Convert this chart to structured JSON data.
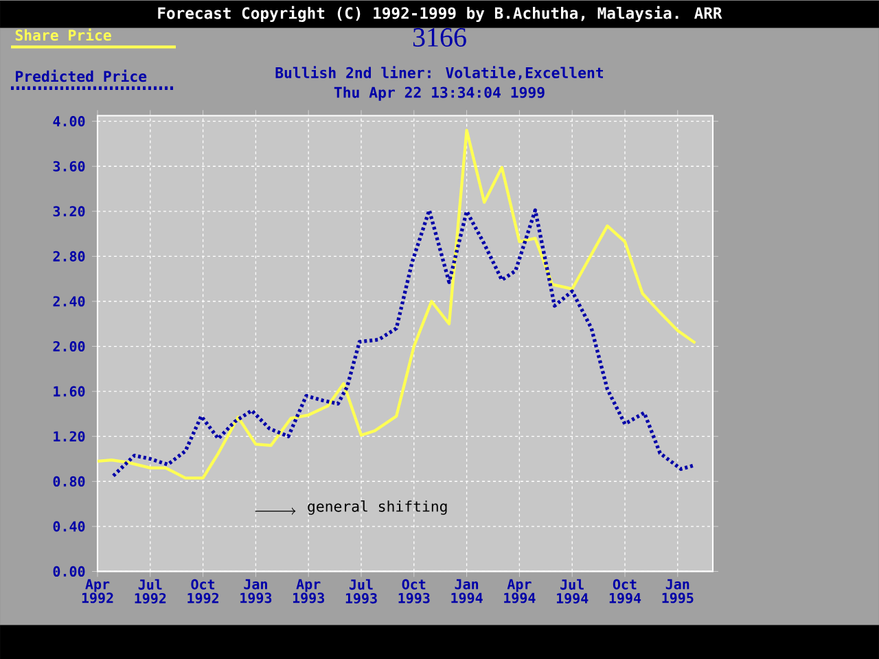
{
  "chart_data": {
    "type": "line",
    "title": "3166",
    "subtitle": "Bullish  2nd liner: Volatile,Excellent",
    "annotations": [
      "Forecast Copyright (C) 1992-1999 by B.Achutha, Malaysia. ARR",
      "Thu Apr 22 13:34:04 1999",
      "general shifting"
    ],
    "xlim": [
      "1992-04",
      "1995-03"
    ],
    "xticks": [
      {
        "value": "1992-04",
        "label": "Apr 1992"
      },
      {
        "value": "1992-07",
        "label": "Jul 1992"
      },
      {
        "value": "1992-10",
        "label": "Oct 1992"
      },
      {
        "value": "1993-01",
        "label": "Jan 1993"
      },
      {
        "value": "1993-04",
        "label": "Apr 1993"
      },
      {
        "value": "1993-07",
        "label": "Jul 1993"
      },
      {
        "value": "1993-10",
        "label": "Oct 1993"
      },
      {
        "value": "1994-01",
        "label": "Jan 1994"
      },
      {
        "value": "1994-04",
        "label": "Apr 1994"
      },
      {
        "value": "1994-07",
        "label": "Jul 1994"
      },
      {
        "value": "1994-10",
        "label": "Oct 1994"
      },
      {
        "value": "1995-01",
        "label": "Jan 1995"
      }
    ],
    "ylim": [
      0,
      4.05
    ],
    "yticks": [
      {
        "value": 0,
        "label": "0.00"
      },
      {
        "value": 0.4,
        "label": "0.40"
      },
      {
        "value": 0.8,
        "label": "0.80"
      },
      {
        "value": 1.2,
        "label": "1.20"
      },
      {
        "value": 1.6,
        "label": "1.60"
      },
      {
        "value": 2.0,
        "label": "2.00"
      },
      {
        "value": 2.4,
        "label": "2.40"
      },
      {
        "value": 2.8,
        "label": "2.80"
      },
      {
        "value": 3.2,
        "label": "3.20"
      },
      {
        "value": 3.6,
        "label": "3.60"
      },
      {
        "value": 4.0,
        "label": "4.00"
      }
    ],
    "grid": true,
    "legend": "top left",
    "marker": "none",
    "series": [
      {
        "name": "Share Price",
        "color": "#ffff54",
        "line_style": "solid",
        "x": [
          "1992-04-01",
          "1992-04-25",
          "1992-05-22",
          "1992-07-01",
          "1992-07-28",
          "1992-09-01",
          "1992-10-01",
          "1992-10-28",
          "1992-12-01",
          "1993-01-01",
          "1993-01-28",
          "1993-03-01",
          "1993-04-01",
          "1993-05-04",
          "1993-06-01",
          "1993-07-01",
          "1993-07-25",
          "1993-09-01",
          "1993-10-01",
          "1993-11-01",
          "1993-12-01",
          "1994-01-01",
          "1994-02-01",
          "1994-03-01",
          "1994-04-01",
          "1994-04-28",
          "1994-05-28",
          "1994-07-01",
          "1994-08-01",
          "1994-09-01",
          "1994-10-01",
          "1994-11-01",
          "1994-12-01",
          "1995-01-01",
          "1995-02-01"
        ],
        "values": [
          0.98,
          0.99,
          0.97,
          0.92,
          0.92,
          0.83,
          0.83,
          1.05,
          1.37,
          1.13,
          1.12,
          1.36,
          1.39,
          1.47,
          1.67,
          1.21,
          1.25,
          1.38,
          2.0,
          2.4,
          2.2,
          3.92,
          3.28,
          3.59,
          2.93,
          2.96,
          2.55,
          2.51,
          2.79,
          3.07,
          2.93,
          2.47,
          2.3,
          2.14,
          2.03
        ]
      },
      {
        "name": "Predicted Price",
        "color": "#0000a8",
        "line_style": "dotted",
        "x": [
          "1992-04-28",
          "1992-06-04",
          "1992-07-01",
          "1992-08-01",
          "1992-09-01",
          "1992-09-28",
          "1992-10-28",
          "1992-11-25",
          "1992-12-25",
          "1993-01-25",
          "1993-02-25",
          "1993-03-28",
          "1993-04-25",
          "1993-05-22",
          "1993-06-07",
          "1993-06-28",
          "1993-08-01",
          "1993-09-01",
          "1993-09-28",
          "1993-10-28",
          "1993-12-01",
          "1994-01-01",
          "1994-02-01",
          "1994-03-01",
          "1994-03-25",
          "1994-04-28",
          "1994-06-01",
          "1994-07-01",
          "1994-08-04",
          "1994-09-01",
          "1994-10-01",
          "1994-11-04",
          "1994-12-01",
          "1995-01-07",
          "1995-01-28"
        ],
        "values": [
          0.85,
          1.03,
          1.0,
          0.95,
          1.07,
          1.38,
          1.18,
          1.33,
          1.43,
          1.27,
          1.2,
          1.56,
          1.52,
          1.49,
          1.64,
          2.04,
          2.06,
          2.16,
          2.75,
          3.21,
          2.57,
          3.2,
          2.91,
          2.59,
          2.67,
          3.21,
          2.36,
          2.49,
          2.16,
          1.62,
          1.31,
          1.41,
          1.05,
          0.91,
          0.94
        ]
      }
    ]
  }
}
